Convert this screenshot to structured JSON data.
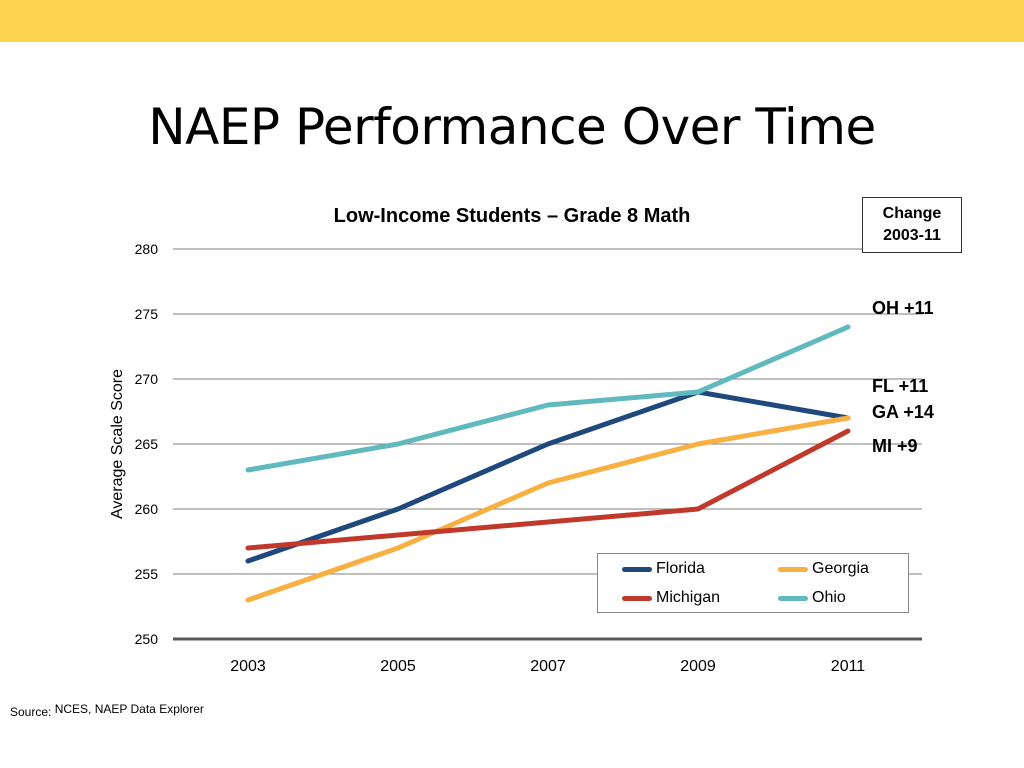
{
  "colors": {
    "top_bar": "#FFD54F",
    "axis": "#595959",
    "grid": "#7f7f7f"
  },
  "slide": {
    "title": "NAEP Performance Over Time"
  },
  "change_box": {
    "line1": "Change",
    "line2": "2003-11"
  },
  "annotations": [
    {
      "text": "OH +11"
    },
    {
      "text": "FL +11"
    },
    {
      "text": "GA +14"
    },
    {
      "text": "MI +9"
    }
  ],
  "source": {
    "label": "Source:",
    "value": "NCES, NAEP Data Explorer"
  },
  "chart_data": {
    "type": "line",
    "title": "Low-Income Students – Grade 8 Math",
    "xlabel": "",
    "ylabel": "Average Scale Score",
    "ylim": [
      250,
      280
    ],
    "yticks": [
      250,
      255,
      260,
      265,
      270,
      275,
      280
    ],
    "grid": true,
    "legend_position": "bottom-right",
    "x": [
      "2003",
      "2005",
      "2007",
      "2009",
      "2011"
    ],
    "series": [
      {
        "name": "Florida",
        "color": "#1F497D",
        "values": [
          256,
          260,
          265,
          269,
          267
        ]
      },
      {
        "name": "Georgia",
        "color": "#F9B042",
        "values": [
          253,
          257,
          262,
          265,
          267
        ]
      },
      {
        "name": "Michigan",
        "color": "#C0392B",
        "values": [
          257,
          258,
          259,
          260,
          266
        ]
      },
      {
        "name": "Ohio",
        "color": "#5FB9BE",
        "values": [
          263,
          265,
          268,
          269,
          274
        ]
      }
    ]
  }
}
